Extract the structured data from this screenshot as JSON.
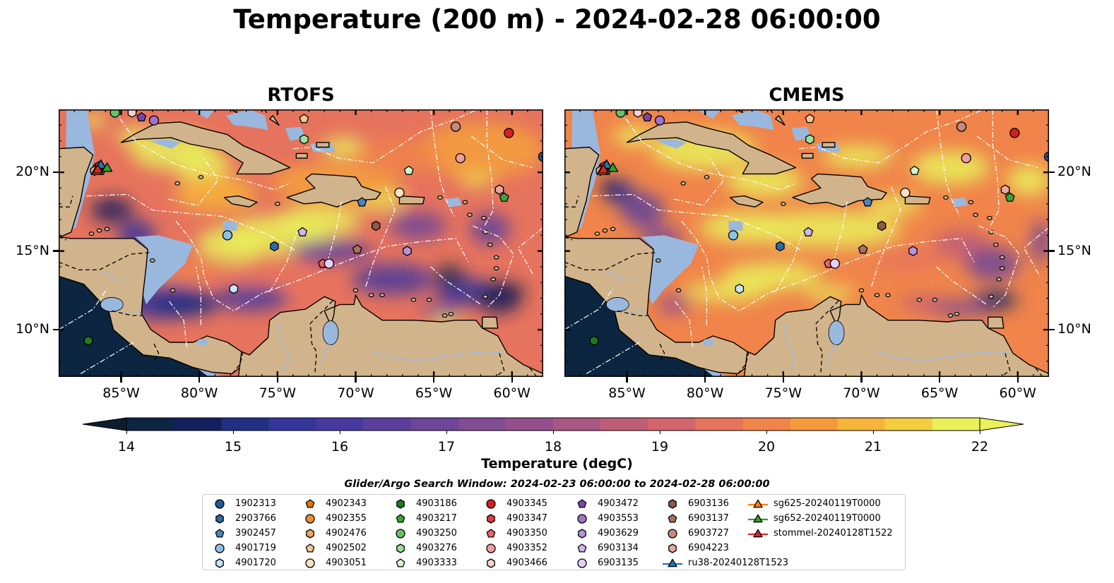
{
  "title": "Temperature (200 m) - 2024-02-28 06:00:00",
  "panels": [
    {
      "id": "rtofs",
      "title": "RTOFS"
    },
    {
      "id": "cmems",
      "title": "CMEMS"
    }
  ],
  "chart_data": {
    "type": "heatmap",
    "variable": "Temperature",
    "depth": "200 m",
    "x_axis": {
      "range": [
        -89,
        -58
      ],
      "tick_values": [
        -85,
        -80,
        -75,
        -70,
        -65,
        -60
      ],
      "tick_labels": [
        "85°W",
        "80°W",
        "75°W",
        "70°W",
        "65°W",
        "60°W"
      ]
    },
    "y_axis": {
      "range": [
        7,
        24
      ],
      "tick_values": [
        10,
        15,
        20
      ],
      "tick_labels": [
        "10°N",
        "15°N",
        "20°N"
      ]
    },
    "colorbar": {
      "label": "Temperature (degC)",
      "min": 14,
      "max": 22,
      "step": 0.5,
      "extend": "both",
      "tick_values": [
        14,
        15,
        16,
        17,
        18,
        19,
        20,
        21,
        22
      ],
      "tick_labels": [
        "14",
        "15",
        "16",
        "17",
        "18",
        "19",
        "20",
        "21",
        "22"
      ],
      "colors": [
        "#0c2540",
        "#141f5e",
        "#212f82",
        "#34349a",
        "#48399e",
        "#5c3f9d",
        "#6e4599",
        "#814c93",
        "#954f8c",
        "#a95783",
        "#c05e78",
        "#d4656d",
        "#e6735d",
        "#f0844a",
        "#f59a3c",
        "#f7b33a",
        "#f4cd3f",
        "#e9f05a"
      ]
    },
    "legend_title": "Glider/Argo Search Window: 2024-02-23 06:00:00 to 2024-02-28 06:00:00",
    "legend_location": "bottom-center",
    "series": [
      {
        "name": "1902313",
        "marker": "circle",
        "color": "#1f5a99",
        "lon": -58,
        "lat": 21
      },
      {
        "name": "2903766",
        "marker": "hexagon",
        "color": "#2c6aa8",
        "lon": -75.2,
        "lat": 15.3
      },
      {
        "name": "3902457",
        "marker": "pentagon",
        "color": "#4a85c0",
        "lon": -69.6,
        "lat": 18.1
      },
      {
        "name": "4901719",
        "marker": "circle",
        "color": "#8cc0e8",
        "lon": -78.2,
        "lat": 16
      },
      {
        "name": "4901720",
        "marker": "hexagon",
        "color": "#c6e4f7",
        "lon": -77.8,
        "lat": 12.6
      },
      {
        "name": "4902343",
        "marker": "pentagon",
        "color": "#e0720c",
        "lon": -86.3,
        "lat": 20.1
      },
      {
        "name": "4902355",
        "marker": "circle",
        "color": "#f08c2c",
        "lon": -86.5,
        "lat": 20.3
      },
      {
        "name": "4902476",
        "marker": "hexagon",
        "color": "#f5a65a",
        "lon": -86.7,
        "lat": 20.1
      },
      {
        "name": "4902502",
        "marker": "pentagon",
        "color": "#f8c48f",
        "lon": -73.3,
        "lat": 23.4
      },
      {
        "name": "4903051",
        "marker": "circle",
        "color": "#fde1c3",
        "lon": -67.2,
        "lat": 18.7
      },
      {
        "name": "4903186",
        "marker": "hexagon",
        "color": "#1f7a1f",
        "lon": -87.1,
        "lat": 9.3
      },
      {
        "name": "4903217",
        "marker": "pentagon",
        "color": "#37a637",
        "lon": -60.5,
        "lat": 18.4
      },
      {
        "name": "4903250",
        "marker": "circle",
        "color": "#66c266",
        "lon": -85.4,
        "lat": 23.8
      },
      {
        "name": "4903276",
        "marker": "hexagon",
        "color": "#9be19b",
        "lon": -73.3,
        "lat": 22.1
      },
      {
        "name": "4903333",
        "marker": "pentagon",
        "color": "#d2f5c8",
        "lon": -66.6,
        "lat": 20.1
      },
      {
        "name": "4903345",
        "marker": "circle",
        "color": "#d62020",
        "lon": -60.2,
        "lat": 22.5
      },
      {
        "name": "4903347",
        "marker": "hexagon",
        "color": "#e03c3c",
        "lon": -86.4,
        "lat": 20.4
      },
      {
        "name": "4903350",
        "marker": "pentagon",
        "color": "#e86363",
        "lon": -72.1,
        "lat": 14.2
      },
      {
        "name": "4903352",
        "marker": "circle",
        "color": "#f39c9c",
        "lon": -63.3,
        "lat": 20.9
      },
      {
        "name": "4903466",
        "marker": "hexagon",
        "color": "#fbd0d0",
        "lon": -84.3,
        "lat": 23.8
      },
      {
        "name": "4903472",
        "marker": "pentagon",
        "color": "#7a46a8",
        "lon": -83.7,
        "lat": 23.5
      },
      {
        "name": "4903553",
        "marker": "circle",
        "color": "#a072c8",
        "lon": -82.9,
        "lat": 23.3
      },
      {
        "name": "4903629",
        "marker": "hexagon",
        "color": "#b894dc",
        "lon": -66.7,
        "lat": 15
      },
      {
        "name": "6903134",
        "marker": "pentagon",
        "color": "#d0b6ea",
        "lon": -73.4,
        "lat": 16.2
      },
      {
        "name": "6903135",
        "marker": "circle",
        "color": "#e6cff7",
        "lon": -71.7,
        "lat": 14.2
      },
      {
        "name": "6903136",
        "marker": "hexagon",
        "color": "#8b5a48",
        "lon": -68.7,
        "lat": 16.6
      },
      {
        "name": "6903137",
        "marker": "pentagon",
        "color": "#a8705d",
        "lon": -69.9,
        "lat": 15.1
      },
      {
        "name": "6903727",
        "marker": "circle",
        "color": "#c68a7c",
        "lon": -63.6,
        "lat": 22.9
      },
      {
        "name": "6904223",
        "marker": "hexagon",
        "color": "#e3aaa0",
        "lon": -60.8,
        "lat": 18.9
      },
      {
        "name": "ru38-20240128T1523",
        "marker": "triangle",
        "color": "#1f77b4",
        "lon": -86.3,
        "lat": 20.5
      },
      {
        "name": "sg625-20240119T0000",
        "marker": "triangle",
        "color": "#ff7f0e",
        "lon": -86.6,
        "lat": 20.1
      },
      {
        "name": "sg652-20240119T0000",
        "marker": "triangle",
        "color": "#2ca02c",
        "lon": -85.9,
        "lat": 20.3
      },
      {
        "name": "stommel-20240128T1522",
        "marker": "triangle",
        "color": "#d62728",
        "lon": -86.5,
        "lat": 20.2
      }
    ]
  }
}
